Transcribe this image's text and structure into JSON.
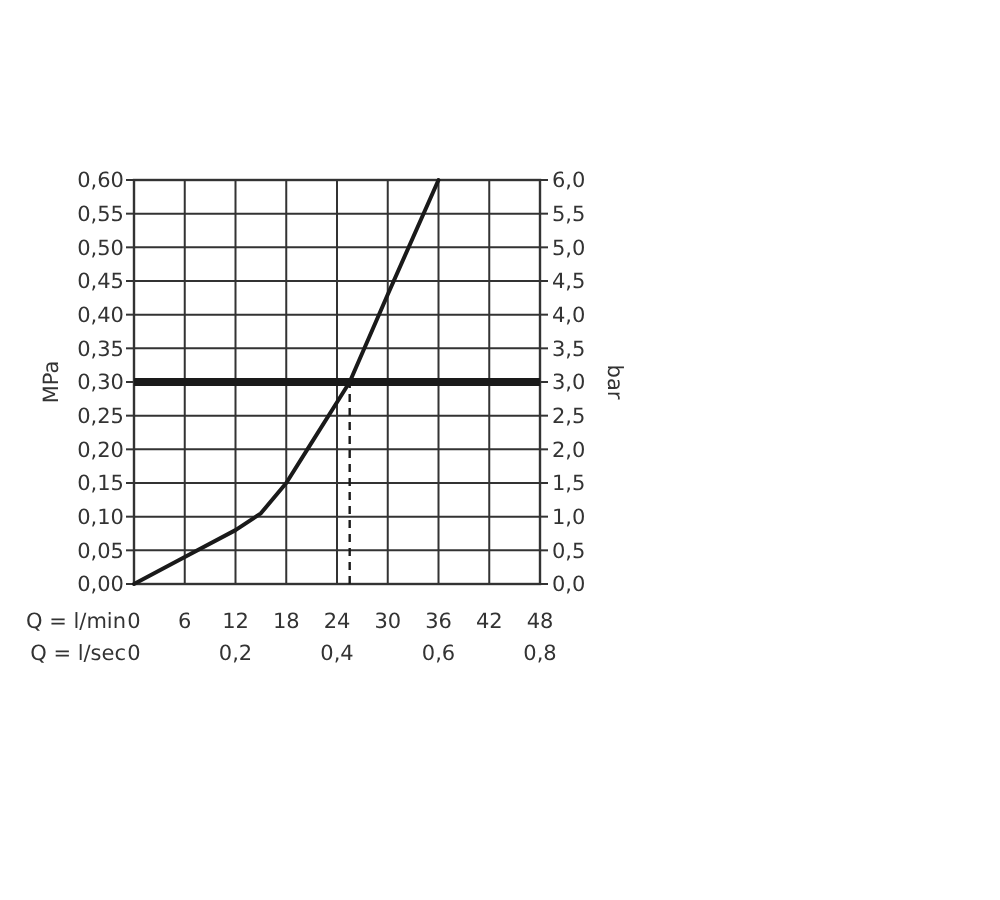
{
  "chart_data": {
    "type": "line",
    "xlabel": "Q = l/min",
    "ylabel": "MPa",
    "y2label": "bar",
    "x2label": "Q = l/sec",
    "series": [
      {
        "color": "#1a1a1a",
        "x": [
          0,
          6,
          12,
          15,
          18,
          21,
          24,
          25.5,
          30,
          36
        ],
        "values": [
          0,
          0.04,
          0.08,
          0.105,
          0.15,
          0.21,
          0.27,
          0.3,
          0.43,
          0.6
        ]
      }
    ],
    "xlim": [
      0,
      48
    ],
    "xticks": [
      0,
      6,
      12,
      18,
      24,
      30,
      36,
      42,
      48
    ],
    "x2lim": [
      0,
      0.8
    ],
    "x2ticks": [
      0,
      {
        "value": 0.2,
        "label": "0,2"
      },
      {
        "value": 0.4,
        "label": "0,4"
      },
      {
        "value": 0.6,
        "label": "0,6"
      },
      {
        "value": 0.8,
        "label": "0,8"
      }
    ],
    "ylim": [
      0,
      0.6
    ],
    "yticks": [
      {
        "value": 0,
        "label": "0,00"
      },
      {
        "value": 0.05,
        "label": "0,05"
      },
      {
        "value": 0.1,
        "label": "0,10"
      },
      {
        "value": 0.15,
        "label": "0,15"
      },
      {
        "value": 0.2,
        "label": "0,20"
      },
      {
        "value": 0.25,
        "label": "0,25"
      },
      {
        "value": 0.3,
        "label": "0,30"
      },
      {
        "value": 0.35,
        "label": "0,35"
      },
      {
        "value": 0.4,
        "label": "0,40"
      },
      {
        "value": 0.45,
        "label": "0,45"
      },
      {
        "value": 0.5,
        "label": "0,50"
      },
      {
        "value": 0.55,
        "label": "0,55"
      },
      {
        "value": 0.6,
        "label": "0,60"
      }
    ],
    "y2lim": [
      0,
      6
    ],
    "y2ticks": [
      {
        "value": 0,
        "label": "0,0"
      },
      {
        "value": 0.5,
        "label": "0,5"
      },
      {
        "value": 1,
        "label": "1,0"
      },
      {
        "value": 1.5,
        "label": "1,5"
      },
      {
        "value": 2,
        "label": "2,0"
      },
      {
        "value": 2.5,
        "label": "2,5"
      },
      {
        "value": 3,
        "label": "3,0"
      },
      {
        "value": 3.5,
        "label": "3,5"
      },
      {
        "value": 4,
        "label": "4,0"
      },
      {
        "value": 4.5,
        "label": "4,5"
      },
      {
        "value": 5,
        "label": "5,0"
      },
      {
        "value": 5.5,
        "label": "5,5"
      },
      {
        "value": 6,
        "label": "6,0"
      }
    ],
    "ref_lines": [
      {
        "axis": "y",
        "value": 0.3,
        "color": "#1a1a1a",
        "line_style": "solid"
      },
      {
        "axis": "x",
        "value": 25.5,
        "color": "#1a1a1a",
        "line_style": "dashed"
      }
    ],
    "grid": true,
    "marker": "none",
    "line_style": "solid"
  }
}
